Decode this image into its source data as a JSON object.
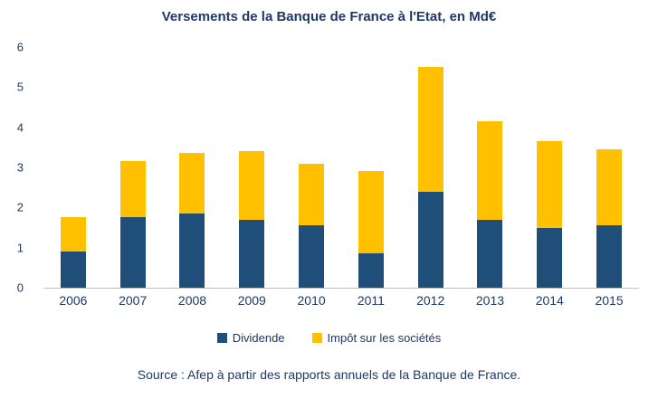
{
  "chart_data": {
    "type": "bar",
    "stacked": true,
    "title": "Versements de la Banque de France à l'Etat, en Md€",
    "categories": [
      "2006",
      "2007",
      "2008",
      "2009",
      "2010",
      "2011",
      "2012",
      "2013",
      "2014",
      "2015"
    ],
    "series": [
      {
        "name": "Dividende",
        "color": "#1F4E79",
        "values": [
          0.9,
          1.75,
          1.85,
          1.7,
          1.55,
          0.85,
          2.4,
          1.7,
          1.5,
          1.55
        ]
      },
      {
        "name": "Impôt sur les sociétés",
        "color": "#FFC000",
        "values": [
          0.85,
          1.4,
          1.5,
          1.7,
          1.55,
          2.05,
          3.1,
          2.45,
          2.15,
          1.9
        ]
      }
    ],
    "xlabel": "",
    "ylabel": "",
    "ylim": [
      0,
      6
    ],
    "yticks": [
      0,
      1,
      2,
      3,
      4,
      5,
      6
    ],
    "grid": false,
    "legend_position": "bottom"
  },
  "colors": {
    "text": "#1F3864",
    "axis_line": "#BFBFBF"
  },
  "source": "Source : Afep à partir des rapports annuels de la Banque de France."
}
